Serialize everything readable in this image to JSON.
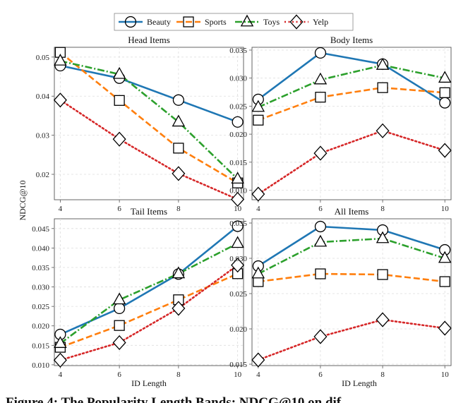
{
  "legend": [
    {
      "name": "Beauty",
      "color": "#1f77b4",
      "marker": "circle",
      "dash": "solid"
    },
    {
      "name": "Sports",
      "color": "#ff7f0e",
      "marker": "square",
      "dash": "dashed"
    },
    {
      "name": "Toys",
      "color": "#2ca02c",
      "marker": "triangle",
      "dash": "dashdot"
    },
    {
      "name": "Yelp",
      "color": "#d62728",
      "marker": "diamond",
      "dash": "dotted"
    }
  ],
  "shared_ylabel": "NDCG@10",
  "shared_xlabel": "ID Length",
  "caption": "Figure 4: The Popularity Length Bands: NDCG@10 on dif",
  "chart_data": [
    {
      "type": "line",
      "title": "Head Items",
      "x": [
        4,
        6,
        8,
        10
      ],
      "xticks": [
        "4",
        "6",
        "8",
        "10"
      ],
      "yticks": [
        "0.02",
        "0.03",
        "0.04",
        "0.05"
      ],
      "ylim": [
        0.0135,
        0.0525
      ],
      "grid": true,
      "series": [
        {
          "name": "Beauty",
          "values": [
            0.0478,
            0.0446,
            0.039,
            0.0334
          ]
        },
        {
          "name": "Sports",
          "values": [
            0.0512,
            0.0389,
            0.0267,
            0.0178
          ]
        },
        {
          "name": "Toys",
          "values": [
            0.049,
            0.0456,
            0.0334,
            0.0188
          ]
        },
        {
          "name": "Yelp",
          "values": [
            0.039,
            0.029,
            0.0202,
            0.0136
          ]
        }
      ]
    },
    {
      "type": "line",
      "title": "Body Items",
      "x": [
        4,
        6,
        8,
        10
      ],
      "xticks": [
        "4",
        "6",
        "8",
        "10"
      ],
      "yticks": [
        "0.010",
        "0.015",
        "0.020",
        "0.025",
        "0.030",
        "0.035"
      ],
      "ylim": [
        0.0083,
        0.0355
      ],
      "grid": true,
      "series": [
        {
          "name": "Beauty",
          "values": [
            0.0262,
            0.0345,
            0.0325,
            0.0256
          ]
        },
        {
          "name": "Sports",
          "values": [
            0.0225,
            0.0266,
            0.0283,
            0.0274
          ]
        },
        {
          "name": "Toys",
          "values": [
            0.0248,
            0.0297,
            0.0323,
            0.03
          ]
        },
        {
          "name": "Yelp",
          "values": [
            0.0093,
            0.0166,
            0.0206,
            0.0171
          ]
        }
      ]
    },
    {
      "type": "line",
      "title": "Tail Items",
      "x": [
        4,
        6,
        8,
        10
      ],
      "xticks": [
        "4",
        "6",
        "8",
        "10"
      ],
      "yticks": [
        "0.010",
        "0.015",
        "0.020",
        "0.025",
        "0.030",
        "0.035",
        "0.040",
        "0.045"
      ],
      "ylim": [
        0.0098,
        0.0475
      ],
      "grid": true,
      "series": [
        {
          "name": "Beauty",
          "values": [
            0.0178,
            0.0245,
            0.0333,
            0.0456
          ]
        },
        {
          "name": "Sports",
          "values": [
            0.0145,
            0.0201,
            0.0267,
            0.0334
          ]
        },
        {
          "name": "Toys",
          "values": [
            0.0155,
            0.0267,
            0.0334,
            0.0412
          ]
        },
        {
          "name": "Yelp",
          "values": [
            0.0112,
            0.0157,
            0.0245,
            0.0356
          ]
        }
      ]
    },
    {
      "type": "line",
      "title": "All Items",
      "x": [
        4,
        6,
        8,
        10
      ],
      "xticks": [
        "4",
        "6",
        "8",
        "10"
      ],
      "yticks": [
        "0.015",
        "0.020",
        "0.025",
        "0.030",
        "0.035"
      ],
      "ylim": [
        0.0148,
        0.0356
      ],
      "grid": true,
      "series": [
        {
          "name": "Beauty",
          "values": [
            0.0289,
            0.0345,
            0.034,
            0.0312
          ]
        },
        {
          "name": "Sports",
          "values": [
            0.0267,
            0.0278,
            0.0277,
            0.0267
          ]
        },
        {
          "name": "Toys",
          "values": [
            0.0278,
            0.0323,
            0.0328,
            0.03
          ]
        },
        {
          "name": "Yelp",
          "values": [
            0.0156,
            0.0189,
            0.0213,
            0.0201
          ]
        }
      ]
    }
  ]
}
